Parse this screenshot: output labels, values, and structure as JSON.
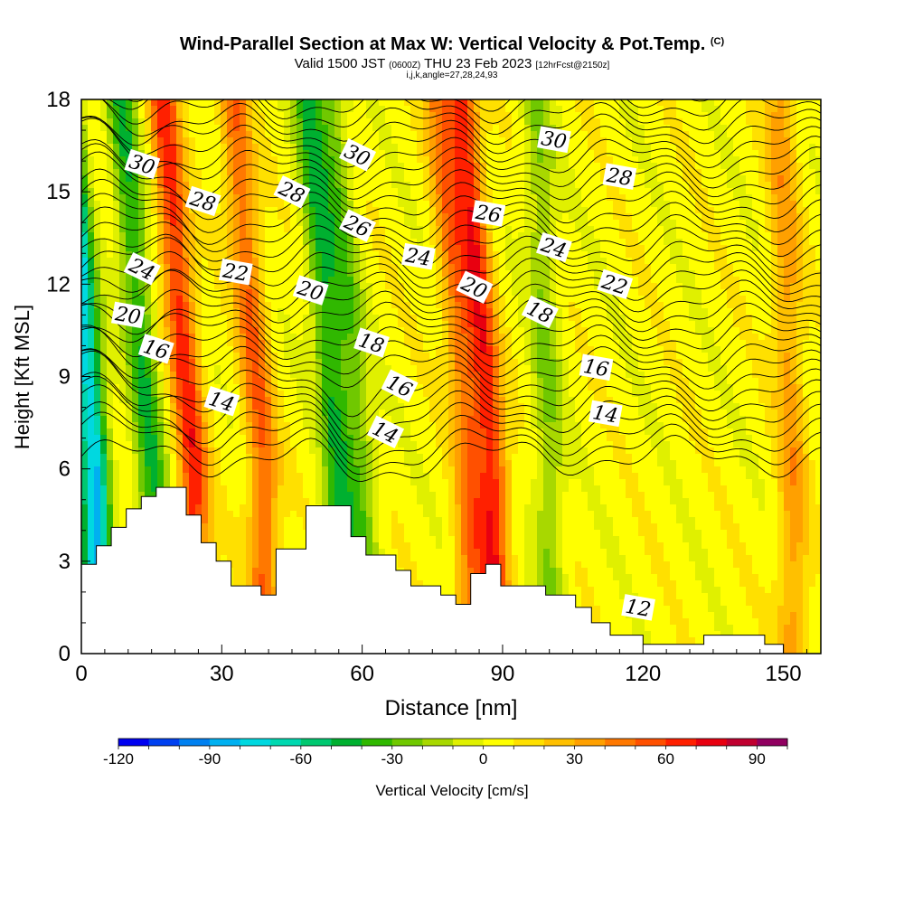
{
  "header": {
    "title": "Wind-Parallel Section at Max W: Vertical Velocity & Pot.Temp.",
    "copyright": "(C)",
    "valid_prefix": "Valid 1500 JST",
    "valid_utc": "(0600Z)",
    "valid_date": "THU 23 Feb 2023",
    "forecast_info": "[12hrFcst@2150z]",
    "indices": "i,j,k,angle=27,28,24,93"
  },
  "chart_data": {
    "type": "heatmap",
    "title": "Wind-Parallel Section at Max W: Vertical Velocity & Pot.Temp.",
    "xlabel": "Distance [nm]",
    "ylabel": "Height [Kft MSL]",
    "xlim": [
      0,
      158
    ],
    "ylim": [
      0,
      18
    ],
    "x_ticks": [
      "0",
      "30",
      "60",
      "90",
      "120",
      "150"
    ],
    "x_tick_values": [
      0,
      30,
      60,
      90,
      120,
      150
    ],
    "y_ticks": [
      "0",
      "3",
      "6",
      "9",
      "12",
      "15",
      "18"
    ],
    "y_tick_values": [
      0,
      3,
      6,
      9,
      12,
      15,
      18
    ],
    "colorbar": {
      "label": "Vertical Velocity [cm/s]",
      "min": -120,
      "max": 100,
      "step": 10,
      "tick_labels": [
        "-120",
        "-90",
        "-60",
        "-30",
        "0",
        "30",
        "60",
        "90"
      ],
      "tick_values": [
        -120,
        -90,
        -60,
        -30,
        0,
        30,
        60,
        90
      ],
      "colors": [
        "#0000f0",
        "#0040f0",
        "#0080f0",
        "#00b0f0",
        "#00d8e0",
        "#00d8b0",
        "#00c870",
        "#00b030",
        "#30b800",
        "#70c800",
        "#a8d800",
        "#e0f000",
        "#ffff00",
        "#ffe000",
        "#ffc000",
        "#ffa000",
        "#ff7800",
        "#ff5000",
        "#ff2000",
        "#e80010",
        "#c00030",
        "#900060"
      ]
    },
    "vertical_velocity_features": [
      {
        "x": 3,
        "w": -85
      },
      {
        "x": 15,
        "w": -45
      },
      {
        "x": 24,
        "w": 60
      },
      {
        "x": 39,
        "w": 45
      },
      {
        "x": 55,
        "w": -45
      },
      {
        "x": 60,
        "w": -30
      },
      {
        "x": 83,
        "w": 40
      },
      {
        "x": 88,
        "w": 60
      },
      {
        "x": 100,
        "w": -25
      },
      {
        "x": 152,
        "w": 30
      }
    ],
    "theta_contours": [
      {
        "label": "12",
        "label_x": 119,
        "label_y": 1.5
      },
      {
        "label": "14",
        "label_x": 30,
        "label_y": 8.2
      },
      {
        "label": "14",
        "label_x": 65,
        "label_y": 7.2
      },
      {
        "label": "14",
        "label_x": 112,
        "label_y": 7.8
      },
      {
        "label": "16",
        "label_x": 16,
        "label_y": 9.9
      },
      {
        "label": "16",
        "label_x": 68,
        "label_y": 8.7
      },
      {
        "label": "16",
        "label_x": 110,
        "label_y": 9.3
      },
      {
        "label": "18",
        "label_x": 62,
        "label_y": 10.1
      },
      {
        "label": "18",
        "label_x": 98,
        "label_y": 11.1
      },
      {
        "label": "20",
        "label_x": 10,
        "label_y": 11.0
      },
      {
        "label": "20",
        "label_x": 49,
        "label_y": 11.8
      },
      {
        "label": "20",
        "label_x": 84,
        "label_y": 11.9
      },
      {
        "label": "22",
        "label_x": 33,
        "label_y": 12.4
      },
      {
        "label": "22",
        "label_x": 114,
        "label_y": 12.0
      },
      {
        "label": "24",
        "label_x": 13,
        "label_y": 12.5
      },
      {
        "label": "24",
        "label_x": 72,
        "label_y": 12.9
      },
      {
        "label": "24",
        "label_x": 101,
        "label_y": 13.2
      },
      {
        "label": "26",
        "label_x": 59,
        "label_y": 13.9
      },
      {
        "label": "26",
        "label_x": 87,
        "label_y": 14.3
      },
      {
        "label": "28",
        "label_x": 26,
        "label_y": 14.7
      },
      {
        "label": "28",
        "label_x": 45,
        "label_y": 15.0
      },
      {
        "label": "28",
        "label_x": 115,
        "label_y": 15.5
      },
      {
        "label": "30",
        "label_x": 13,
        "label_y": 15.9
      },
      {
        "label": "30",
        "label_x": 59,
        "label_y": 16.2
      },
      {
        "label": "30",
        "label_x": 101,
        "label_y": 16.7
      }
    ],
    "terrain": [
      [
        0,
        2.9
      ],
      [
        3.2,
        2.9
      ],
      [
        3.2,
        3.5
      ],
      [
        6.4,
        3.5
      ],
      [
        6.4,
        4.1
      ],
      [
        9.6,
        4.1
      ],
      [
        9.6,
        4.7
      ],
      [
        12.8,
        4.7
      ],
      [
        12.8,
        5.1
      ],
      [
        16,
        5.1
      ],
      [
        16,
        5.4
      ],
      [
        22.4,
        5.4
      ],
      [
        22.4,
        4.5
      ],
      [
        25.6,
        4.5
      ],
      [
        25.6,
        3.6
      ],
      [
        28.8,
        3.6
      ],
      [
        28.8,
        3.0
      ],
      [
        32,
        3.0
      ],
      [
        32,
        2.2
      ],
      [
        38.4,
        2.2
      ],
      [
        38.4,
        1.9
      ],
      [
        41.6,
        1.9
      ],
      [
        41.6,
        3.4
      ],
      [
        48,
        3.4
      ],
      [
        48,
        4.8
      ],
      [
        57.6,
        4.8
      ],
      [
        57.6,
        3.8
      ],
      [
        60.8,
        3.8
      ],
      [
        60.8,
        3.2
      ],
      [
        67.2,
        3.2
      ],
      [
        67.2,
        2.7
      ],
      [
        70.4,
        2.7
      ],
      [
        70.4,
        2.2
      ],
      [
        76.8,
        2.2
      ],
      [
        76.8,
        1.9
      ],
      [
        80,
        1.9
      ],
      [
        80,
        1.6
      ],
      [
        83.2,
        1.6
      ],
      [
        83.2,
        2.6
      ],
      [
        86.4,
        2.6
      ],
      [
        86.4,
        2.9
      ],
      [
        89.6,
        2.9
      ],
      [
        89.6,
        2.2
      ],
      [
        99.2,
        2.2
      ],
      [
        99.2,
        1.9
      ],
      [
        105.6,
        1.9
      ],
      [
        105.6,
        1.5
      ],
      [
        109,
        1.5
      ],
      [
        109,
        1.0
      ],
      [
        113,
        1.0
      ],
      [
        113,
        0.6
      ],
      [
        120,
        0.6
      ],
      [
        120,
        0.3
      ],
      [
        133,
        0.3
      ],
      [
        133,
        0.6
      ],
      [
        146,
        0.6
      ],
      [
        146,
        0.3
      ],
      [
        150,
        0.3
      ],
      [
        150,
        0.0
      ],
      [
        158,
        0.0
      ]
    ]
  }
}
